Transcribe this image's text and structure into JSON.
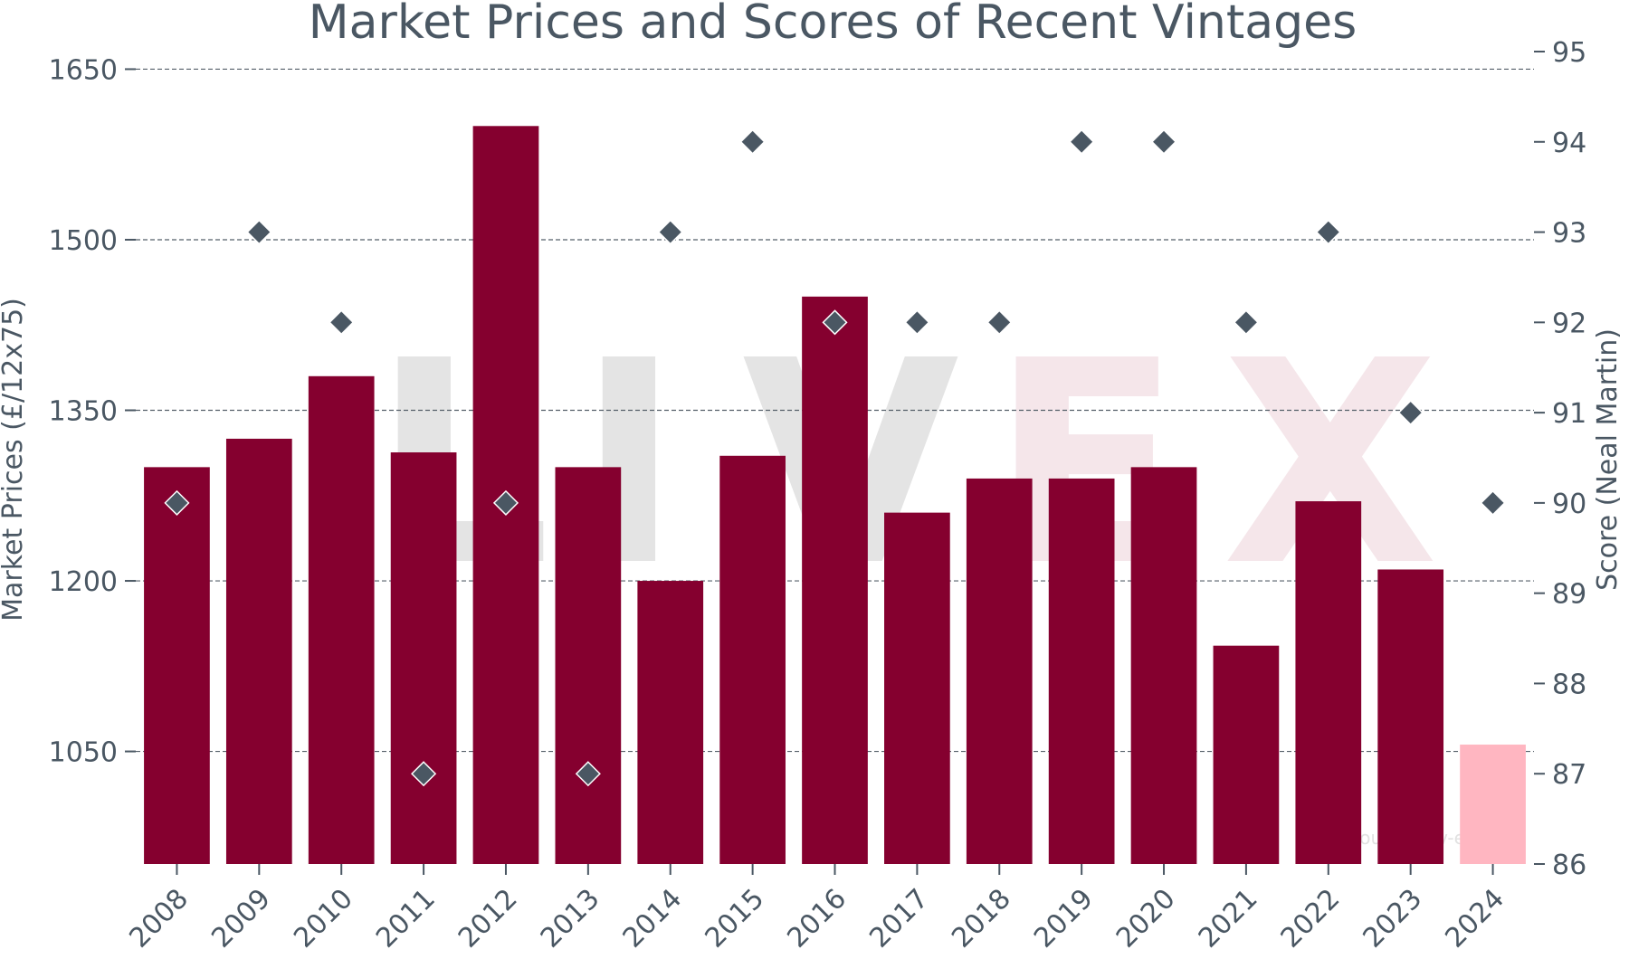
{
  "chart_data": {
    "type": "bar",
    "title": "Market Prices and Scores of Recent Vintages",
    "xlabel": "",
    "ylabel": "Market Prices (£/12x75)",
    "y2label": "Score (Neal Martin)",
    "watermark": "LIVEX",
    "source_note": "Source: Liv-ex",
    "categories": [
      "2008",
      "2009",
      "2010",
      "2011",
      "2012",
      "2013",
      "2014",
      "2015",
      "2016",
      "2017",
      "2018",
      "2019",
      "2020",
      "2021",
      "2022",
      "2023",
      "2024"
    ],
    "series": [
      {
        "axis": "left",
        "type": "bar",
        "values": [
          1300,
          1325,
          1380,
          1313,
          1600,
          1300,
          1200,
          1310,
          1450,
          1260,
          1290,
          1290,
          1300,
          1143,
          1270,
          1210,
          1056
        ],
        "colors": [
          "#85002f",
          "#85002f",
          "#85002f",
          "#85002f",
          "#85002f",
          "#85002f",
          "#85002f",
          "#85002f",
          "#85002f",
          "#85002f",
          "#85002f",
          "#85002f",
          "#85002f",
          "#85002f",
          "#85002f",
          "#85002f",
          "#ffb6c1"
        ]
      },
      {
        "axis": "right",
        "type": "scatter",
        "marker": "diamond",
        "color": "#4a5763",
        "values": [
          90,
          93,
          92,
          87,
          90,
          87,
          93,
          94,
          92,
          92,
          92,
          94,
          94,
          92,
          93,
          91,
          90
        ]
      }
    ],
    "ylim": [
      951,
      1679
    ],
    "y2lim": [
      86,
      95
    ],
    "yticks": [
      1050,
      1200,
      1350,
      1500,
      1650
    ],
    "y2ticks": [
      86,
      87,
      88,
      89,
      90,
      91,
      92,
      93,
      94,
      95
    ],
    "grid": true
  }
}
